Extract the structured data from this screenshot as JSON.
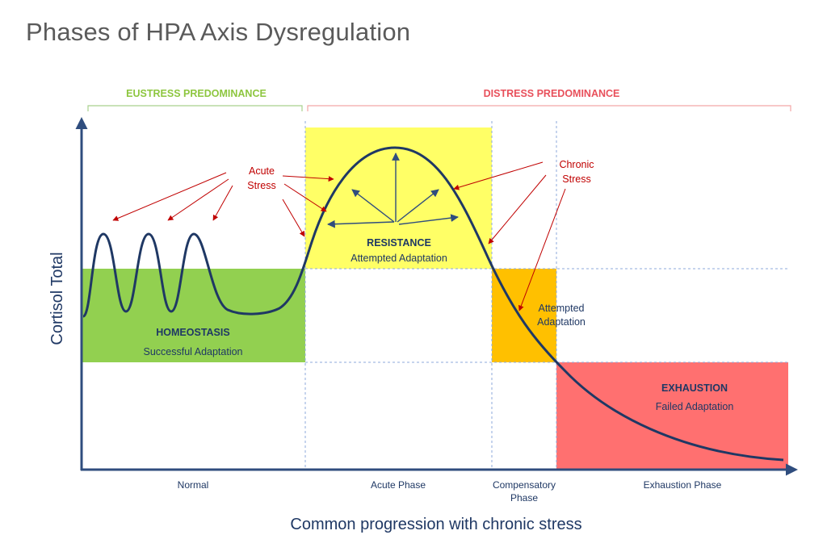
{
  "title": "Phases of HPA Axis Dysregulation",
  "bands": {
    "eustress": "EUSTRESS PREDOMINANCE",
    "distress": "DISTRESS PREDOMINANCE"
  },
  "axes": {
    "y_label": "Cortisol Total",
    "x_label": "Common progression with chronic stress"
  },
  "phases": {
    "normal": "Normal",
    "acute": "Acute Phase",
    "compensatory_line1": "Compensatory",
    "compensatory_line2": "Phase",
    "exhaustion": "Exhaustion Phase"
  },
  "zones": {
    "homeostasis_title": "HOMEOSTASIS",
    "homeostasis_sub": "Successful Adaptation",
    "resistance_title": "RESISTANCE",
    "resistance_sub": "Attempted Adaptation",
    "compensatory_line1": "Attempted",
    "compensatory_line2": "Adaptation",
    "exhaustion_title": "EXHAUSTION",
    "exhaustion_sub": "Failed Adaptation"
  },
  "annotations": {
    "acute_line1": "Acute",
    "acute_line2": "Stress",
    "chronic_line1": "Chronic",
    "chronic_line2": "Stress"
  },
  "colors": {
    "green": "#92d050",
    "yellow": "#ffff66",
    "orange": "#ffc000",
    "red": "#ff7070",
    "navy": "#1f3864",
    "arrow_red": "#c00000",
    "eustress_text": "#8dc63f",
    "distress_text": "#e8505b"
  }
}
